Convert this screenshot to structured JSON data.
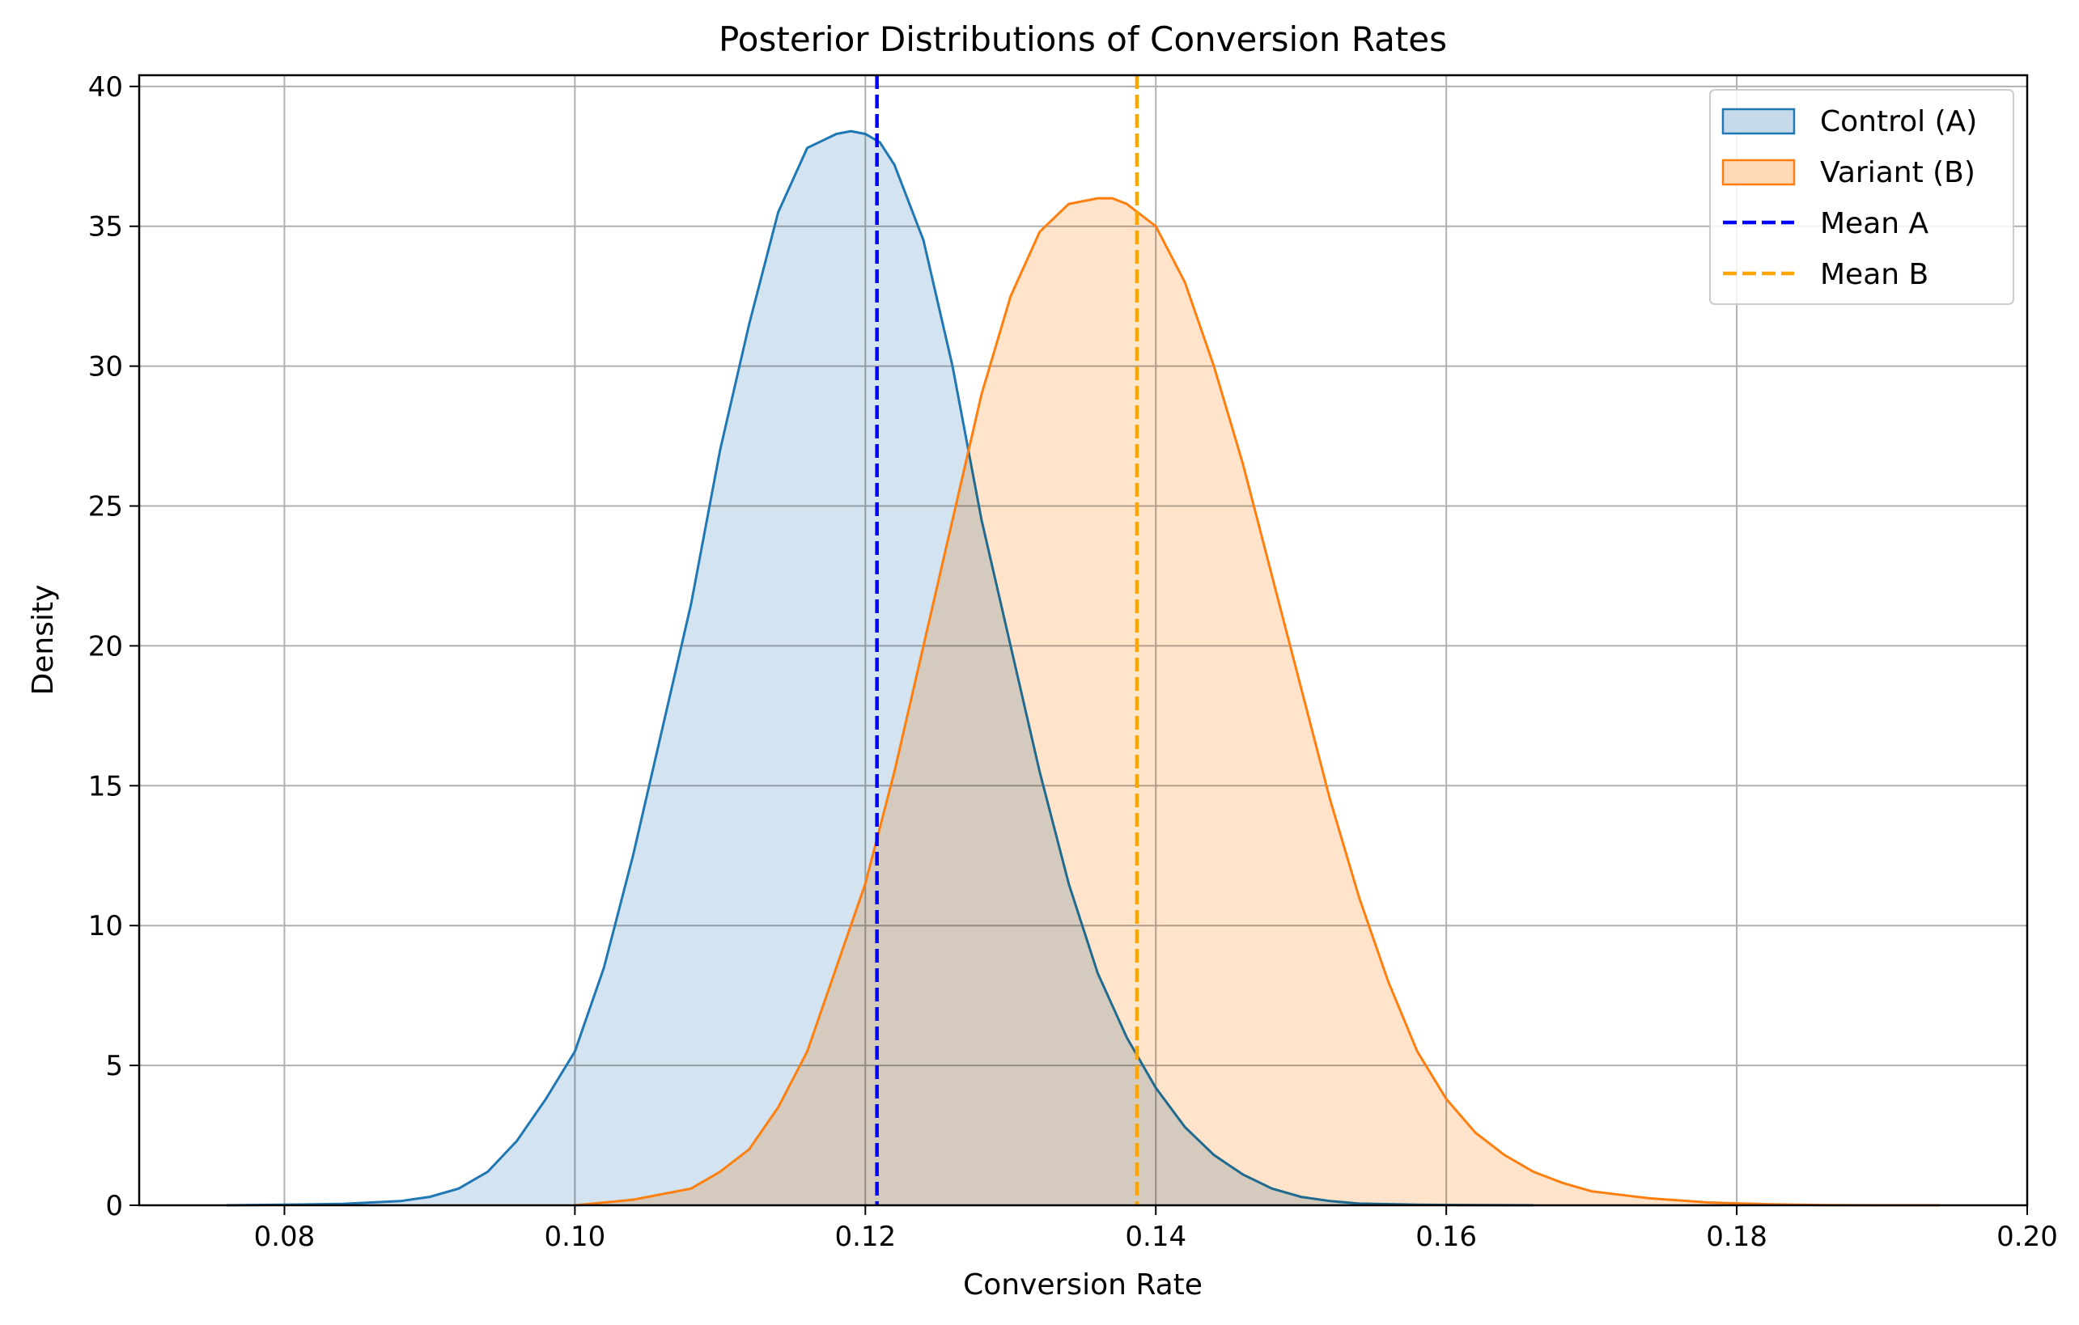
{
  "chart_data": {
    "type": "area",
    "title": "Posterior Distributions of Conversion Rates",
    "xlabel": "Conversion Rate",
    "ylabel": "Density",
    "xlim": [
      0.07,
      0.2
    ],
    "ylim": [
      0,
      40.4
    ],
    "xticks": [
      0.08,
      0.1,
      0.12,
      0.14,
      0.16,
      0.18,
      0.2
    ],
    "xtick_labels": [
      "0.08",
      "0.10",
      "0.12",
      "0.14",
      "0.16",
      "0.18",
      "0.20"
    ],
    "yticks": [
      0,
      5,
      10,
      15,
      20,
      25,
      30,
      35,
      40
    ],
    "ytick_labels": [
      "0",
      "5",
      "10",
      "15",
      "20",
      "25",
      "30",
      "35",
      "40"
    ],
    "grid": true,
    "legend_position": "top-right",
    "series": [
      {
        "name": "Control (A)",
        "kind": "density",
        "color": "#1f77b4",
        "fill": "#c5daeb",
        "x": [
          0.076,
          0.08,
          0.084,
          0.088,
          0.09,
          0.092,
          0.094,
          0.096,
          0.098,
          0.1,
          0.102,
          0.104,
          0.106,
          0.108,
          0.11,
          0.112,
          0.114,
          0.116,
          0.118,
          0.119,
          0.12,
          0.121,
          0.122,
          0.124,
          0.126,
          0.128,
          0.13,
          0.132,
          0.134,
          0.136,
          0.138,
          0.14,
          0.142,
          0.144,
          0.146,
          0.148,
          0.15,
          0.152,
          0.154,
          0.158,
          0.162,
          0.166
        ],
        "y": [
          0.0,
          0.02,
          0.05,
          0.15,
          0.3,
          0.6,
          1.2,
          2.3,
          3.8,
          5.5,
          8.5,
          12.5,
          17.0,
          21.5,
          27.0,
          31.5,
          35.5,
          37.8,
          38.3,
          38.4,
          38.3,
          38.0,
          37.2,
          34.5,
          30.0,
          24.5,
          20.0,
          15.5,
          11.5,
          8.3,
          6.0,
          4.2,
          2.8,
          1.8,
          1.1,
          0.6,
          0.3,
          0.15,
          0.06,
          0.02,
          0.005,
          0.0
        ]
      },
      {
        "name": "Variant (B)",
        "kind": "density",
        "color": "#ff7f0e",
        "fill": "#ffd9b8",
        "x": [
          0.1,
          0.104,
          0.108,
          0.11,
          0.112,
          0.114,
          0.116,
          0.118,
          0.12,
          0.122,
          0.124,
          0.126,
          0.128,
          0.13,
          0.132,
          0.134,
          0.136,
          0.137,
          0.138,
          0.14,
          0.142,
          0.144,
          0.146,
          0.148,
          0.15,
          0.152,
          0.154,
          0.156,
          0.158,
          0.16,
          0.162,
          0.164,
          0.166,
          0.168,
          0.17,
          0.174,
          0.178,
          0.182,
          0.186,
          0.19,
          0.194
        ],
        "y": [
          0.0,
          0.2,
          0.6,
          1.2,
          2.0,
          3.5,
          5.5,
          8.5,
          11.5,
          15.5,
          20.0,
          24.5,
          29.0,
          32.5,
          34.8,
          35.8,
          36.0,
          36.0,
          35.8,
          35.0,
          33.0,
          30.0,
          26.5,
          22.5,
          18.5,
          14.5,
          11.0,
          8.0,
          5.5,
          3.8,
          2.6,
          1.8,
          1.2,
          0.8,
          0.5,
          0.25,
          0.1,
          0.04,
          0.01,
          0.0,
          0.0
        ]
      }
    ],
    "vlines": [
      {
        "name": "Mean A",
        "x": 0.1208,
        "color": "#0000ff",
        "style": "dashed"
      },
      {
        "name": "Mean B",
        "x": 0.1387,
        "color": "#ffa500",
        "style": "dashed"
      }
    ],
    "legend": [
      {
        "label": "Control (A)",
        "marker": "patch",
        "stroke": "#1f77b4",
        "fill": "#c5daeb"
      },
      {
        "label": "Variant (B)",
        "marker": "patch",
        "stroke": "#ff7f0e",
        "fill": "#ffd9b8"
      },
      {
        "label": "Mean A",
        "marker": "dashed-line",
        "stroke": "#0000ff"
      },
      {
        "label": "Mean B",
        "marker": "dashed-line",
        "stroke": "#ffa500"
      }
    ]
  }
}
